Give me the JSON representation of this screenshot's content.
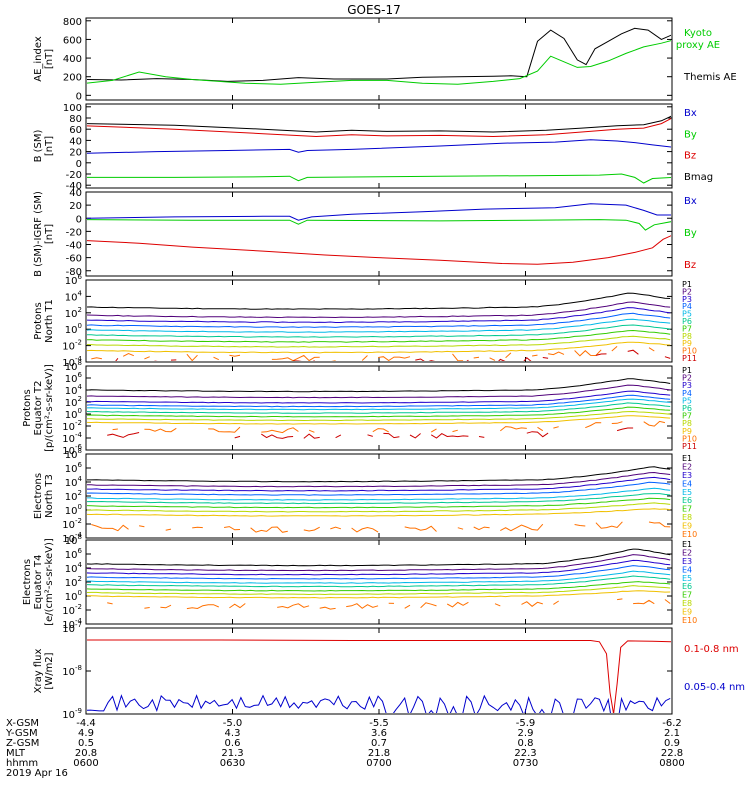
{
  "title": "GOES-17",
  "colors": {
    "black": "#000000",
    "red": "#dd0000",
    "green": "#00cc00",
    "blue": "#0000cc",
    "ladder": [
      "#000000",
      "#50007a",
      "#2200cc",
      "#0060ff",
      "#00b8e8",
      "#00c890",
      "#33cc00",
      "#b8d800",
      "#f0c000",
      "#ff7000",
      "#cc0000"
    ]
  },
  "chart_data": [
    {
      "type": "line",
      "ylabel": [
        "AE_index",
        "[nT]"
      ],
      "yticks": [
        "800",
        "600",
        "400",
        "200",
        "0"
      ],
      "legend": [
        {
          "text": "Kyoto",
          "color": "#00cc00"
        },
        {
          "text": "proxy AE",
          "color": "#00cc00"
        },
        {
          "text": "Themis AE",
          "color": "#000000"
        }
      ],
      "ylim": [
        -50,
        830
      ],
      "series": [
        {
          "name": "Themis AE",
          "color": "#000000",
          "points": [
            [
              0,
              170
            ],
            [
              40,
              165
            ],
            [
              80,
              180
            ],
            [
              120,
              170
            ],
            [
              160,
              150
            ],
            [
              200,
              160
            ],
            [
              240,
              190
            ],
            [
              280,
              175
            ],
            [
              340,
              175
            ],
            [
              380,
              195
            ],
            [
              420,
              200
            ],
            [
              460,
              205
            ],
            [
              480,
              210
            ],
            [
              498,
              200
            ],
            [
              510,
              580
            ],
            [
              525,
              700
            ],
            [
              540,
              610
            ],
            [
              555,
              380
            ],
            [
              565,
              330
            ],
            [
              575,
              500
            ],
            [
              590,
              580
            ],
            [
              605,
              660
            ],
            [
              620,
              720
            ],
            [
              635,
              700
            ],
            [
              650,
              600
            ],
            [
              662,
              650
            ]
          ]
        },
        {
          "name": "Kyoto proxy AE",
          "color": "#00cc00",
          "points": [
            [
              0,
              130
            ],
            [
              30,
              160
            ],
            [
              60,
              250
            ],
            [
              90,
              200
            ],
            [
              120,
              170
            ],
            [
              150,
              150
            ],
            [
              180,
              130
            ],
            [
              220,
              120
            ],
            [
              260,
              140
            ],
            [
              300,
              160
            ],
            [
              340,
              160
            ],
            [
              380,
              130
            ],
            [
              420,
              120
            ],
            [
              460,
              150
            ],
            [
              490,
              180
            ],
            [
              510,
              260
            ],
            [
              525,
              420
            ],
            [
              540,
              360
            ],
            [
              555,
              300
            ],
            [
              570,
              310
            ],
            [
              590,
              370
            ],
            [
              610,
              450
            ],
            [
              630,
              520
            ],
            [
              650,
              560
            ],
            [
              662,
              590
            ]
          ]
        }
      ]
    },
    {
      "type": "line",
      "ylabel": [
        "B (SM)",
        "[nT]"
      ],
      "yticks": [
        "100",
        "80",
        "60",
        "40",
        "20",
        "0",
        "-20",
        "-40"
      ],
      "legend": [
        {
          "text": "Bx",
          "color": "#0000cc"
        },
        {
          "text": "By",
          "color": "#00cc00"
        },
        {
          "text": "Bz",
          "color": "#dd0000"
        },
        {
          "text": "Bmag",
          "color": "#000000"
        }
      ],
      "ylim": [
        -45,
        105
      ],
      "series": [
        {
          "name": "Bmag",
          "color": "#000000",
          "points": [
            [
              0,
              70
            ],
            [
              100,
              67
            ],
            [
              200,
              60
            ],
            [
              260,
              55
            ],
            [
              300,
              58
            ],
            [
              340,
              56
            ],
            [
              400,
              57
            ],
            [
              460,
              55
            ],
            [
              520,
              58
            ],
            [
              560,
              62
            ],
            [
              600,
              66
            ],
            [
              630,
              68
            ],
            [
              650,
              75
            ],
            [
              662,
              84
            ]
          ]
        },
        {
          "name": "Bz",
          "color": "#dd0000",
          "points": [
            [
              0,
              66
            ],
            [
              100,
              60
            ],
            [
              200,
              52
            ],
            [
              260,
              47
            ],
            [
              300,
              50
            ],
            [
              340,
              48
            ],
            [
              400,
              49
            ],
            [
              460,
              47
            ],
            [
              520,
              50
            ],
            [
              560,
              55
            ],
            [
              600,
              60
            ],
            [
              630,
              62
            ],
            [
              650,
              70
            ],
            [
              662,
              80
            ]
          ]
        },
        {
          "name": "Bx",
          "color": "#0000cc",
          "points": [
            [
              0,
              17
            ],
            [
              80,
              20
            ],
            [
              160,
              22
            ],
            [
              230,
              24
            ],
            [
              240,
              19
            ],
            [
              250,
              22
            ],
            [
              300,
              24
            ],
            [
              400,
              30
            ],
            [
              470,
              35
            ],
            [
              530,
              37
            ],
            [
              570,
              41
            ],
            [
              600,
              39
            ],
            [
              620,
              36
            ],
            [
              640,
              32
            ],
            [
              662,
              28
            ]
          ]
        },
        {
          "name": "By",
          "color": "#00cc00",
          "points": [
            [
              0,
              -26
            ],
            [
              100,
              -26
            ],
            [
              200,
              -25
            ],
            [
              230,
              -24
            ],
            [
              240,
              -32
            ],
            [
              250,
              -26
            ],
            [
              400,
              -24
            ],
            [
              500,
              -23
            ],
            [
              580,
              -22
            ],
            [
              605,
              -20
            ],
            [
              620,
              -26
            ],
            [
              630,
              -36
            ],
            [
              640,
              -28
            ],
            [
              662,
              -26
            ]
          ]
        }
      ]
    },
    {
      "type": "line",
      "ylabel": [
        "B (SM)-IGRF (SM)",
        "[nT]"
      ],
      "yticks": [
        "40",
        "20",
        "0",
        "-20",
        "-40",
        "-60",
        "-80"
      ],
      "legend": [
        {
          "text": "Bx",
          "color": "#0000cc"
        },
        {
          "text": "By",
          "color": "#00cc00"
        },
        {
          "text": "Bz",
          "color": "#dd0000"
        }
      ],
      "ylim": [
        -88,
        40
      ],
      "series": [
        {
          "name": "Bx",
          "color": "#0000cc",
          "points": [
            [
              0,
              0
            ],
            [
              100,
              2
            ],
            [
              200,
              3
            ],
            [
              230,
              3
            ],
            [
              240,
              -3
            ],
            [
              255,
              2
            ],
            [
              300,
              6
            ],
            [
              380,
              10
            ],
            [
              450,
              14
            ],
            [
              530,
              16
            ],
            [
              570,
              22
            ],
            [
              610,
              20
            ],
            [
              630,
              12
            ],
            [
              645,
              5
            ],
            [
              662,
              5
            ]
          ]
        },
        {
          "name": "By",
          "color": "#00cc00",
          "points": [
            [
              0,
              -2
            ],
            [
              120,
              -3
            ],
            [
              230,
              -3
            ],
            [
              240,
              -9
            ],
            [
              250,
              -3
            ],
            [
              400,
              -4
            ],
            [
              500,
              -3
            ],
            [
              580,
              -2
            ],
            [
              610,
              -3
            ],
            [
              625,
              -8
            ],
            [
              632,
              -18
            ],
            [
              642,
              -10
            ],
            [
              662,
              -5
            ]
          ]
        },
        {
          "name": "Bz",
          "color": "#dd0000",
          "points": [
            [
              0,
              -34
            ],
            [
              60,
              -38
            ],
            [
              120,
              -44
            ],
            [
              200,
              -50
            ],
            [
              270,
              -56
            ],
            [
              330,
              -60
            ],
            [
              400,
              -64
            ],
            [
              470,
              -69
            ],
            [
              510,
              -70
            ],
            [
              550,
              -67
            ],
            [
              590,
              -60
            ],
            [
              620,
              -52
            ],
            [
              640,
              -45
            ],
            [
              652,
              -32
            ],
            [
              662,
              -26
            ]
          ]
        }
      ]
    },
    {
      "type": "line",
      "log": true,
      "ylabel": [
        "Protons",
        "North T1"
      ],
      "ylim_exp": [
        -4,
        6
      ],
      "ytick_exps": [
        6,
        4,
        2,
        0,
        -2,
        -4
      ],
      "labels": [
        "P1",
        "P2",
        "P3",
        "P4",
        "P5",
        "P6",
        "P7",
        "P8",
        "P9",
        "P10",
        "P11"
      ],
      "bases": [
        2.7,
        1.7,
        1.1,
        0.5,
        -0.1,
        -0.7,
        -1.3,
        -1.9,
        -2.6,
        -3.3,
        -3.9
      ],
      "bump": [
        1.6,
        1.5,
        1.4,
        1.3,
        1.2,
        1.1,
        1.0,
        0.9,
        0.9,
        0.8,
        0.8
      ],
      "bump_x": 615,
      "noisy_from": 9,
      "seed": 11
    },
    {
      "type": "line",
      "log": true,
      "ylabel": [
        "Protons",
        "Equator T2",
        "[p/(cm²-s-sr-keV)]"
      ],
      "ylim_exp": [
        -6,
        8
      ],
      "ytick_exps": [
        8,
        6,
        4,
        2,
        0,
        -2,
        -4,
        -6
      ],
      "labels": [
        "P1",
        "P2",
        "P3",
        "P4",
        "P5",
        "P6",
        "P7",
        "P8",
        "P9",
        "P10",
        "P11"
      ],
      "bases": [
        4.0,
        3.0,
        2.1,
        1.5,
        1.0,
        0.4,
        -0.2,
        -0.8,
        -1.4,
        -2.4,
        -3.4
      ],
      "bump": [
        1.8,
        1.7,
        1.6,
        1.5,
        1.4,
        1.3,
        1.2,
        1.1,
        1.0,
        0.9,
        0.8
      ],
      "bump_x": 615,
      "noisy_from": 9,
      "seed": 23
    },
    {
      "type": "line",
      "log": true,
      "ylabel": [
        "Electrons",
        "North T3"
      ],
      "ylim_exp": [
        -4,
        8
      ],
      "ytick_exps": [
        8,
        6,
        4,
        2,
        0,
        -2,
        -4
      ],
      "labels": [
        "E1",
        "E2",
        "E3",
        "E4",
        "E5",
        "E6",
        "E7",
        "E8",
        "E9",
        "E10"
      ],
      "bases": [
        4.3,
        3.6,
        3.0,
        2.4,
        1.7,
        1.2,
        0.6,
        0.0,
        -0.6,
        -2.5
      ],
      "bump": [
        1.7,
        1.6,
        1.5,
        1.4,
        1.2,
        1.0,
        0.9,
        0.8,
        0.6,
        0.4
      ],
      "bump_x": 640,
      "bump_start": 510,
      "noisy_from": 9,
      "seed": 37
    },
    {
      "type": "line",
      "log": true,
      "ylabel": [
        "Electrons",
        "Equator T4",
        "[e/(cm²-s-sr-keV)]"
      ],
      "ylim_exp": [
        -4,
        8
      ],
      "ytick_exps": [
        8,
        6,
        4,
        2,
        0,
        -2,
        -4
      ],
      "labels": [
        "E1",
        "E2",
        "E3",
        "E4",
        "E5",
        "E6",
        "E7",
        "E8",
        "E9",
        "E10"
      ],
      "bases": [
        4.6,
        3.9,
        3.3,
        2.7,
        2.1,
        1.6,
        1.0,
        0.5,
        0.0,
        -1.2
      ],
      "bump": [
        2.0,
        1.9,
        1.7,
        1.5,
        1.3,
        1.1,
        0.9,
        0.8,
        0.6,
        0.4
      ],
      "bump_x": 620,
      "bump_start": 510,
      "noisy_from": 9,
      "seed": 53
    },
    {
      "type": "line",
      "log": true,
      "ylabel": [
        "Xray flux",
        "[W/m2]"
      ],
      "ylim_exp": [
        -9,
        -7
      ],
      "ytick_exps": [
        -7,
        -8,
        -9
      ],
      "legend": [
        {
          "text": "0.1-0.8 nm",
          "color": "#dd0000"
        },
        {
          "text": "0.05-0.4 nm",
          "color": "#0000cc"
        }
      ],
      "series": [
        {
          "name": "0.1-0.8 nm",
          "color": "#dd0000",
          "points": [
            [
              0,
              -7.28
            ],
            [
              150,
              -7.28
            ],
            [
              300,
              -7.29
            ],
            [
              450,
              -7.29
            ],
            [
              570,
              -7.29
            ],
            [
              580,
              -7.32
            ],
            [
              588,
              -7.6
            ],
            [
              592,
              -8.5
            ],
            [
              596,
              -9.0
            ],
            [
              600,
              -8.3
            ],
            [
              604,
              -7.45
            ],
            [
              612,
              -7.3
            ],
            [
              640,
              -7.31
            ],
            [
              662,
              -7.32
            ]
          ]
        },
        {
          "name": "0.05-0.4 nm",
          "color": "#0000cc",
          "noisy": true,
          "base": -8.75,
          "amp": 0.18,
          "seed": 71,
          "dropout_x": 598
        }
      ]
    }
  ],
  "x_axis": {
    "rows": [
      {
        "label": "X-GSM",
        "values": [
          "-4.4",
          "-5.0",
          "-5.5",
          "-5.9",
          "-6.2"
        ]
      },
      {
        "label": "Y-GSM",
        "values": [
          "4.9",
          "4.3",
          "3.6",
          "2.9",
          "2.1"
        ]
      },
      {
        "label": "Z-GSM",
        "values": [
          "0.5",
          "0.6",
          "0.7",
          "0.8",
          "0.9"
        ]
      },
      {
        "label": "MLT",
        "values": [
          "20.8",
          "21.3",
          "21.8",
          "22.3",
          "22.8"
        ]
      },
      {
        "label": "hhmm",
        "values": [
          "0600",
          "0630",
          "0700",
          "0730",
          "0800"
        ]
      }
    ],
    "date": "2019 Apr 16"
  }
}
